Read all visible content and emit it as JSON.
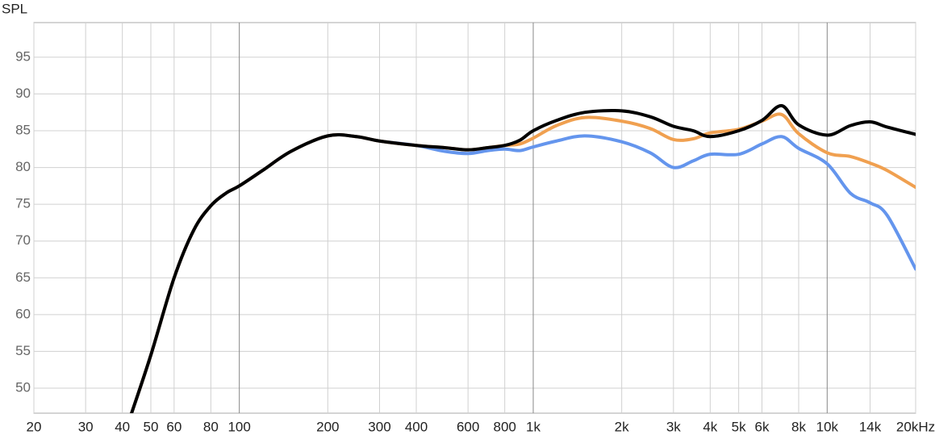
{
  "chart_data": {
    "type": "line",
    "y_label": "SPL",
    "log_x": true,
    "grid": true,
    "xlim": [
      20,
      20000
    ],
    "ylim": [
      46.6,
      99.7
    ],
    "xticks": [
      20,
      30,
      40,
      50,
      60,
      80,
      100,
      200,
      300,
      400,
      600,
      800,
      {
        "value": 1000,
        "label": "1k"
      },
      {
        "value": 2000,
        "label": "2k"
      },
      {
        "value": 3000,
        "label": "3k"
      },
      {
        "value": 4000,
        "label": "4k"
      },
      {
        "value": 5000,
        "label": "5k"
      },
      {
        "value": 6000,
        "label": "6k"
      },
      {
        "value": 8000,
        "label": "8k"
      },
      {
        "value": 10000,
        "label": "10k"
      },
      {
        "value": 14000,
        "label": "14k"
      },
      {
        "value": 20000,
        "label": "20kHz"
      }
    ],
    "yticks": [
      50,
      55,
      60,
      65,
      70,
      75,
      80,
      85,
      90,
      95
    ],
    "x": [
      43,
      50,
      60,
      70,
      80,
      90,
      100,
      120,
      150,
      200,
      250,
      300,
      400,
      500,
      600,
      700,
      800,
      900,
      1000,
      1200,
      1500,
      2000,
      2500,
      3000,
      3500,
      4000,
      5000,
      6000,
      7000,
      8000,
      10000,
      12000,
      14000,
      16000,
      20000
    ],
    "series": [
      {
        "color": "#6495ed",
        "values": [
          46.6,
          54.5,
          65,
          71.5,
          74.8,
          76.5,
          77.5,
          79.6,
          82.2,
          84.3,
          84.2,
          83.6,
          83,
          82.2,
          81.9,
          82.3,
          82.5,
          82.3,
          82.8,
          83.6,
          84.3,
          83.5,
          82,
          80,
          80.9,
          81.8,
          81.8,
          83.2,
          84.2,
          82.6,
          80.5,
          76.5,
          75.2,
          73.5,
          66.2
        ]
      },
      {
        "color": "#f0a050",
        "values": [
          46.6,
          54.5,
          65,
          71.5,
          74.8,
          76.5,
          77.5,
          79.6,
          82.2,
          84.3,
          84.2,
          83.6,
          83,
          82.7,
          82.4,
          82.7,
          83,
          83.2,
          84,
          85.7,
          86.8,
          86.3,
          85.3,
          83.8,
          83.9,
          84.7,
          85.2,
          86.3,
          87.2,
          84.6,
          82,
          81.5,
          80.6,
          79.6,
          77.3
        ]
      },
      {
        "color": "#000000",
        "values": [
          46.6,
          54.5,
          65,
          71.5,
          74.8,
          76.5,
          77.5,
          79.6,
          82.2,
          84.3,
          84.2,
          83.6,
          83,
          82.7,
          82.4,
          82.7,
          83,
          83.7,
          85,
          86.4,
          87.5,
          87.7,
          86.9,
          85.6,
          85,
          84.2,
          85,
          86.4,
          88.4,
          85.8,
          84.4,
          85.7,
          86.2,
          85.5,
          84.5
        ]
      }
    ]
  }
}
